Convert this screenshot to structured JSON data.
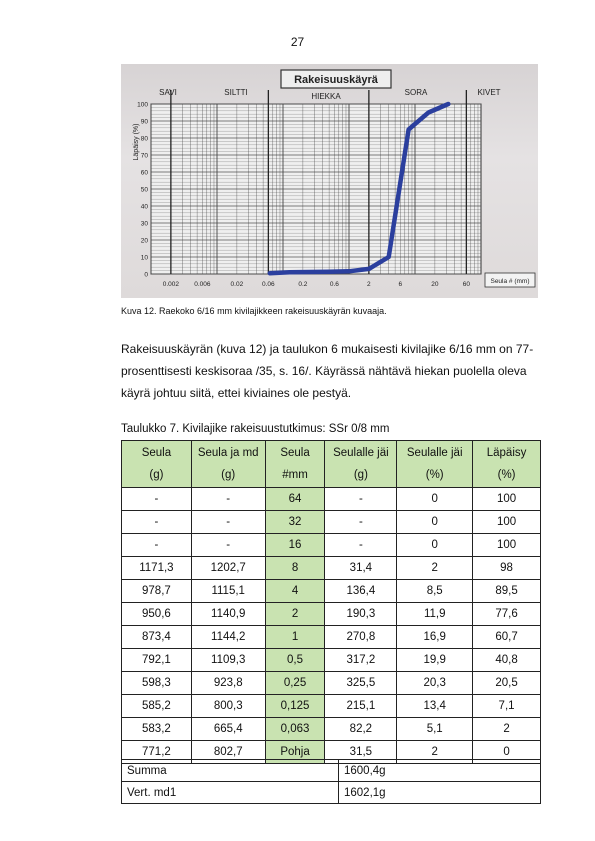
{
  "page_number": "27",
  "chart_photo": {
    "title": "Rakeisuuskäyrä",
    "zone_labels": [
      "SAVI",
      "SILTTI",
      "HIEKKA",
      "SORA",
      "KIVET"
    ],
    "ylabel": "Läpäisy (%)",
    "xlabel": "Seula # (mm)",
    "y_ticks": [
      "100",
      "90",
      "80",
      "70",
      "60",
      "50",
      "40",
      "30",
      "20",
      "10",
      "0"
    ],
    "x_ticks": [
      "0.002",
      "0.006",
      "0.02",
      "0.06",
      "0.2",
      "0.6",
      "2",
      "6",
      "20",
      "60"
    ]
  },
  "chart_data": {
    "type": "line",
    "title": "Rakeisuuskäyrä",
    "xlabel": "Seula # (mm)",
    "ylabel": "Läpäisy (%)",
    "x_scale": "log",
    "xlim": [
      0.001,
      100
    ],
    "ylim": [
      0,
      100
    ],
    "series": [
      {
        "x": [
          0.063,
          0.125,
          0.25,
          0.5,
          1,
          2,
          4,
          8,
          16,
          32
        ],
        "y": [
          0.5,
          1.0,
          1.2,
          1.3,
          1.6,
          3,
          10,
          85,
          95,
          100
        ]
      }
    ]
  },
  "caption": "Kuva 12. Raekoko 6/16 mm kivilajikkeen rakeisuuskäyrän kuvaaja.",
  "paragraph": [
    "Rakeisuuskäyrän (kuva 12) ja taulukon 6 mukaisesti kivilajike 6/16 mm on 77-",
    "prosenttisesti keskisoraa /35, s. 16/. Käyrässä nähtävä hiekan puolella oleva",
    "käyrä johtuu siitä, ettei kiviaines ole pestyä."
  ],
  "table_title": "Taulukko 7. Kivilajike rakeisuustutkimus: SSr 0/8 mm",
  "table": {
    "headers": [
      [
        "Seula",
        "(g)"
      ],
      [
        "Seula ja md",
        "(g)"
      ],
      [
        "Seula",
        "#mm"
      ],
      [
        "Seulalle jäi",
        "(g)"
      ],
      [
        "Seulalle jäi",
        "(%)"
      ],
      [
        "Läpäisy",
        "(%)"
      ]
    ],
    "rows": [
      [
        "-",
        "-",
        "64",
        "-",
        "0",
        "100"
      ],
      [
        "-",
        "-",
        "32",
        "-",
        "0",
        "100"
      ],
      [
        "-",
        "-",
        "16",
        "-",
        "0",
        "100"
      ],
      [
        "1171,3",
        "1202,7",
        "8",
        "31,4",
        "2",
        "98"
      ],
      [
        "978,7",
        "1115,1",
        "4",
        "136,4",
        "8,5",
        "89,5"
      ],
      [
        "950,6",
        "1140,9",
        "2",
        "190,3",
        "11,9",
        "77,6"
      ],
      [
        "873,4",
        "1144,2",
        "1",
        "270,8",
        "16,9",
        "60,7"
      ],
      [
        "792,1",
        "1109,3",
        "0,5",
        "317,2",
        "19,9",
        "40,8"
      ],
      [
        "598,3",
        "923,8",
        "0,25",
        "325,5",
        "20,3",
        "20,5"
      ],
      [
        "585,2",
        "800,3",
        "0,125",
        "215,1",
        "13,4",
        "7,1"
      ],
      [
        "583,2",
        "665,4",
        "0,063",
        "82,2",
        "5,1",
        "2"
      ],
      [
        "771,2",
        "802,7",
        "Pohja",
        "31,5",
        "2",
        "0"
      ]
    ]
  },
  "summary": [
    {
      "label": "Summa",
      "value": "1600,4g"
    },
    {
      "label": "Vert. md1",
      "value": "1602,1g"
    }
  ],
  "colors": {
    "header_green": "#c9e3b1",
    "curve_blue": "#2b3f9e"
  }
}
